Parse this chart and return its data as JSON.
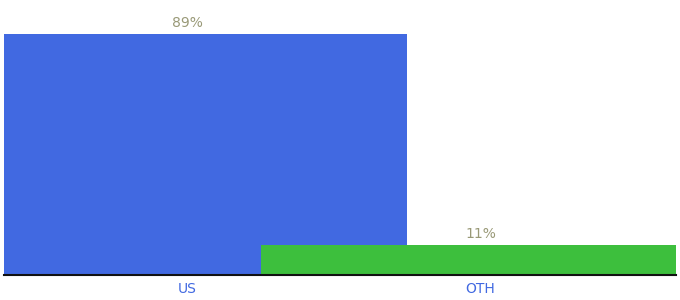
{
  "categories": [
    "US",
    "OTH"
  ],
  "values": [
    89,
    11
  ],
  "bar_colors": [
    "#4169e1",
    "#3dbf3d"
  ],
  "bar_labels": [
    "89%",
    "11%"
  ],
  "label_color": "#999977",
  "background_color": "#ffffff",
  "ylim": [
    0,
    100
  ],
  "xlabel_fontsize": 10,
  "label_fontsize": 10,
  "bar_width": 0.72,
  "bar_positions": [
    0.3,
    0.78
  ],
  "xlim": [
    0.0,
    1.1
  ],
  "spine_color": "#111111"
}
